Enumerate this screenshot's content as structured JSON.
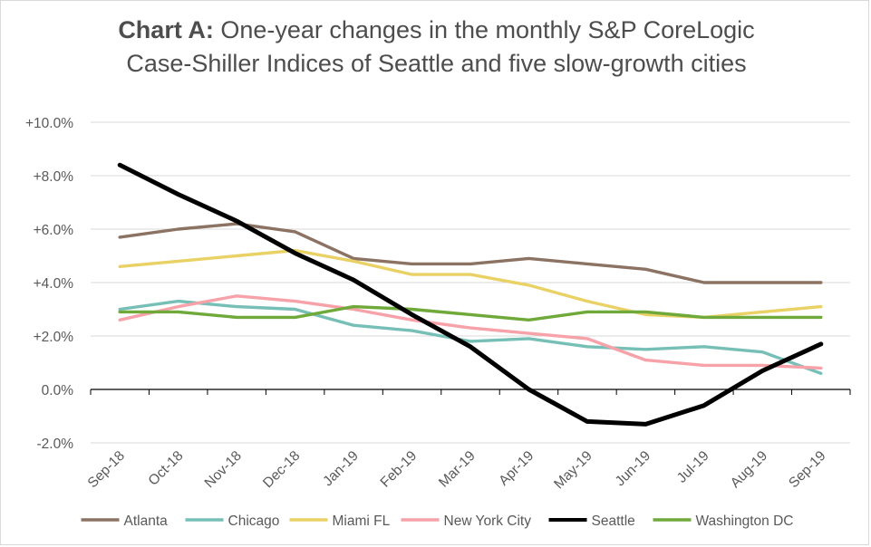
{
  "chart_data": {
    "type": "line",
    "title_bold": "Chart A:",
    "title_rest": "One-year changes in the monthly S&P CoreLogic Case-Shiller Indices of Seattle and five slow-growth cities",
    "xlabel": "",
    "ylabel": "",
    "ylim": [
      -2.0,
      10.0
    ],
    "yticks": [
      10.0,
      8.0,
      6.0,
      4.0,
      2.0,
      0.0,
      -2.0
    ],
    "ytick_labels": [
      "+10.0%",
      "+8.0%",
      "+6.0%",
      "+4.0%",
      "+2.0%",
      "0.0%",
      "-2.0%"
    ],
    "grid": true,
    "legend_position": "bottom",
    "categories": [
      "Sep-18",
      "Oct-18",
      "Nov-18",
      "Dec-18",
      "Jan-19",
      "Feb-19",
      "Mar-19",
      "Apr-19",
      "May-19",
      "Jun-19",
      "Jul-19",
      "Aug-19",
      "Sep-19"
    ],
    "series": [
      {
        "name": "Atlanta",
        "color": "#8c7262",
        "values": [
          5.7,
          6.0,
          6.2,
          5.9,
          4.9,
          4.7,
          4.7,
          4.9,
          4.7,
          4.5,
          4.0,
          4.0,
          4.0
        ]
      },
      {
        "name": "Chicago",
        "color": "#76bfb6",
        "values": [
          3.0,
          3.3,
          3.1,
          3.0,
          2.4,
          2.2,
          1.8,
          1.9,
          1.6,
          1.5,
          1.6,
          1.4,
          0.6
        ]
      },
      {
        "name": "Miami FL",
        "color": "#ead166",
        "values": [
          4.6,
          4.8,
          5.0,
          5.2,
          4.8,
          4.3,
          4.3,
          3.9,
          3.3,
          2.8,
          2.7,
          2.9,
          3.1
        ]
      },
      {
        "name": "New York City",
        "color": "#f7a1a9",
        "values": [
          2.6,
          3.1,
          3.5,
          3.3,
          3.0,
          2.6,
          2.3,
          2.1,
          1.9,
          1.1,
          0.9,
          0.9,
          0.8
        ]
      },
      {
        "name": "Seattle",
        "color": "#000000",
        "values": [
          8.4,
          7.3,
          6.3,
          5.1,
          4.1,
          2.8,
          1.6,
          0.0,
          -1.2,
          -1.3,
          -0.6,
          0.7,
          1.7
        ]
      },
      {
        "name": "Washington DC",
        "color": "#6ea93a",
        "values": [
          2.9,
          2.9,
          2.7,
          2.7,
          3.1,
          3.0,
          2.8,
          2.6,
          2.9,
          2.9,
          2.7,
          2.7,
          2.7
        ]
      }
    ]
  }
}
